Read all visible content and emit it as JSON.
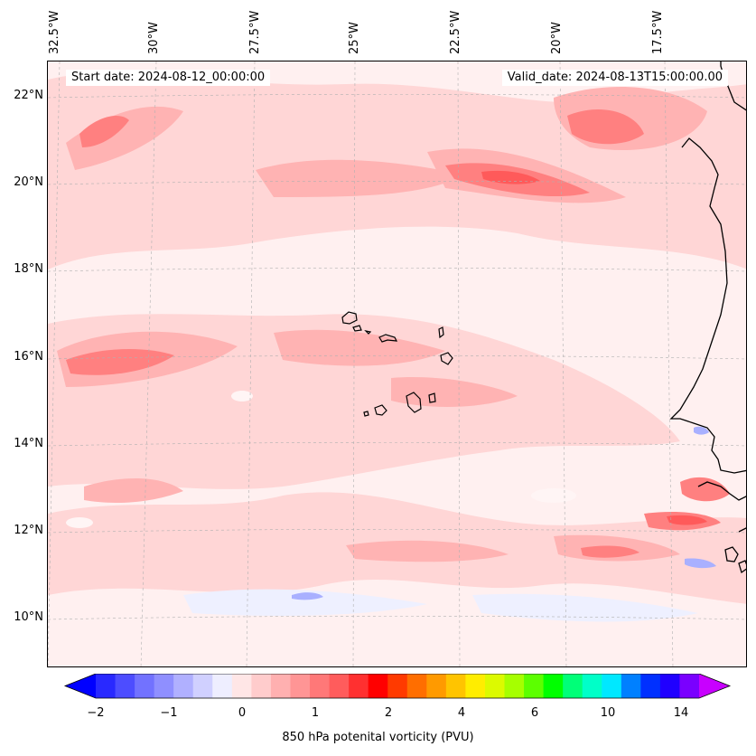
{
  "map": {
    "start_date_text": "Start date: 2024-08-12_00:00:00",
    "valid_date_text": "Valid_date: 2024-08-13T15:00:00.00",
    "region": "Eastern tropical Atlantic / Cape Verde / West Africa",
    "lon_labels": [
      "32.5°W",
      "30°W",
      "27.5°W",
      "25°W",
      "22.5°W",
      "20°W",
      "17.5°W"
    ],
    "lat_labels": [
      "22°N",
      "20°N",
      "18°N",
      "16°N",
      "14°N",
      "12°N",
      "10°N"
    ],
    "field_colors": {
      "very_light": "#fff0f0",
      "light": "#ffd6d6",
      "medium": "#ffb3b3",
      "strong": "#ff8080",
      "stronger": "#ff5a5a",
      "negative_light": "#eef0ff",
      "negative_medium": "#a9b0ff",
      "coast": "#000000",
      "grid": "#b0b0b0"
    }
  },
  "colorbar": {
    "label": "850 hPa potenital vorticity (PVU)",
    "ticks": [
      "−2",
      "−1",
      "0",
      "1",
      "2",
      "4",
      "6",
      "10",
      "14"
    ],
    "colors": [
      "#0000ff",
      "#2929ff",
      "#4d4dff",
      "#7272ff",
      "#8f8fff",
      "#b0b0ff",
      "#d0d0ff",
      "#eeeeff",
      "#ffe6e6",
      "#ffcccc",
      "#ffb0b0",
      "#ff9595",
      "#ff7878",
      "#ff5c5c",
      "#ff3030",
      "#ff0000",
      "#ff3a00",
      "#ff6e00",
      "#ff9a00",
      "#ffc400",
      "#ffed00",
      "#dcfa00",
      "#a6ff00",
      "#5cff00",
      "#00ff00",
      "#00ff78",
      "#00ffc8",
      "#00e8ff",
      "#0080ff",
      "#0030ff",
      "#2000ff",
      "#7a00ff",
      "#c800ff"
    ]
  }
}
